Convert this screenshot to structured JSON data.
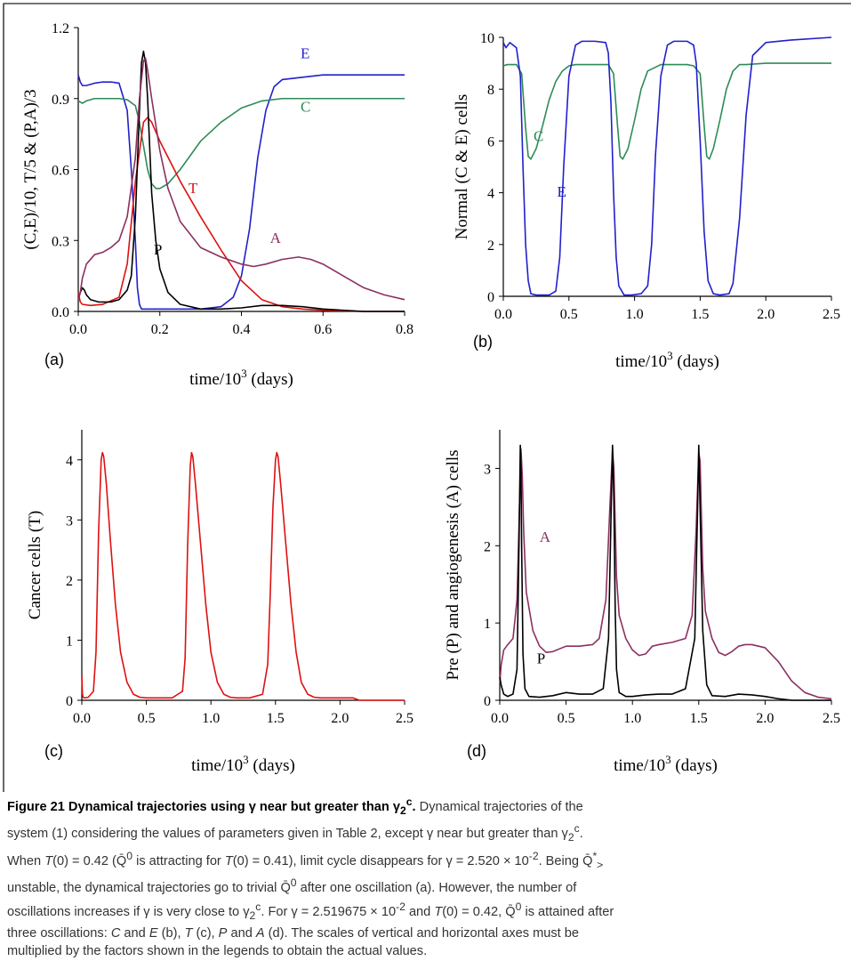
{
  "caption": {
    "title_text": "Figure 21 Dynamical trajectories using γ near but greater than γ",
    "title_sub": "2",
    "title_sup": "c",
    "title_end": ".",
    "line1_a": " Dynamical trajectories of the",
    "line2": "system (1) considering the values of parameters given in Table 2, except γ near but greater than γ",
    "line3_a": "When ",
    "line3_b": "T",
    "line3_c": "(0) = 0.42 (",
    "qbar": "Q̄",
    "sup0": "0",
    "line3_d": " is attracting for ",
    "line3_e": "(0) = 0.41), limit cycle disappears for γ = 2.520 × 10",
    "exp_m2": "-2",
    "line3_f": ". Being ",
    "star_gt": "*",
    "gt": ">",
    "line4_a": "unstable, the dynamical trajectories go to trivial ",
    "line4_b": " after one oscillation (a). However, the number of",
    "line5_a": "oscillations increases if γ is very close to γ",
    "line5_b": ". For γ = 2.519675 × 10",
    "line5_c": " and ",
    "line5_d": "(0) = 0.42, ",
    "line5_e": " is attained after",
    "line6_a": "three oscillations: ",
    "line6_C": "C",
    "line6_and": " and ",
    "line6_E": "E",
    "line6_b": " (b), ",
    "line6_T": "T",
    "line6_c": " (c), ",
    "line6_P": "P",
    "line6_A": "A",
    "line6_d": " (d). The scales of vertical and horizontal axes must be",
    "line7": "multiplied by the factors shown in the legends to obtain the actual values."
  },
  "chart_data": [
    {
      "panel": "(a)",
      "type": "line",
      "xlabel": "time/10",
      "xlabel_sup": "3",
      "xlabel_tail": " (days)",
      "ylabel": "(C,E)/10, T/5 & (P,A)/3",
      "xlim": [
        0,
        0.8
      ],
      "ylim": [
        0,
        1.2
      ],
      "xticks": [
        "0.0",
        "0.2",
        "0.4",
        "0.6",
        "0.8"
      ],
      "yticks": [
        "0.0",
        "0.3",
        "0.6",
        "0.9",
        "1.2"
      ],
      "series": [
        {
          "name": "E",
          "color": "#2020cc",
          "x": [
            0,
            0.005,
            0.01,
            0.02,
            0.04,
            0.06,
            0.08,
            0.1,
            0.12,
            0.13,
            0.14,
            0.145,
            0.15,
            0.155,
            0.16,
            0.17,
            0.18,
            0.2,
            0.25,
            0.3,
            0.35,
            0.38,
            0.4,
            0.42,
            0.44,
            0.46,
            0.48,
            0.5,
            0.55,
            0.6,
            0.7,
            0.8
          ],
          "y": [
            1.0,
            0.97,
            0.955,
            0.955,
            0.965,
            0.97,
            0.97,
            0.965,
            0.85,
            0.6,
            0.3,
            0.1,
            0.03,
            0.01,
            0.01,
            0.01,
            0.01,
            0.01,
            0.01,
            0.01,
            0.02,
            0.06,
            0.15,
            0.35,
            0.65,
            0.85,
            0.95,
            0.98,
            0.99,
            1.0,
            1.0,
            1.0
          ]
        },
        {
          "name": "C",
          "color": "#2e8b57",
          "x": [
            0,
            0.005,
            0.01,
            0.02,
            0.04,
            0.08,
            0.1,
            0.12,
            0.14,
            0.15,
            0.16,
            0.17,
            0.18,
            0.19,
            0.2,
            0.22,
            0.25,
            0.3,
            0.35,
            0.4,
            0.45,
            0.5,
            0.6,
            0.8
          ],
          "y": [
            0.89,
            0.885,
            0.88,
            0.89,
            0.9,
            0.9,
            0.9,
            0.895,
            0.87,
            0.8,
            0.7,
            0.6,
            0.54,
            0.52,
            0.52,
            0.54,
            0.6,
            0.72,
            0.8,
            0.86,
            0.89,
            0.9,
            0.9,
            0.9
          ]
        },
        {
          "name": "T",
          "color": "#dd1111",
          "x": [
            0,
            0.005,
            0.01,
            0.03,
            0.06,
            0.1,
            0.12,
            0.14,
            0.16,
            0.17,
            0.18,
            0.2,
            0.25,
            0.3,
            0.35,
            0.4,
            0.45,
            0.5,
            0.55,
            0.6,
            0.7,
            0.8
          ],
          "y": [
            0.08,
            0.04,
            0.03,
            0.025,
            0.03,
            0.06,
            0.2,
            0.55,
            0.8,
            0.82,
            0.8,
            0.72,
            0.55,
            0.4,
            0.26,
            0.13,
            0.05,
            0.02,
            0.01,
            0.005,
            0.0,
            0.0
          ]
        },
        {
          "name": "P",
          "color": "#000000",
          "x": [
            0,
            0.005,
            0.01,
            0.015,
            0.02,
            0.03,
            0.05,
            0.08,
            0.1,
            0.12,
            0.13,
            0.14,
            0.15,
            0.155,
            0.16,
            0.165,
            0.17,
            0.175,
            0.18,
            0.19,
            0.2,
            0.22,
            0.25,
            0.3,
            0.35,
            0.4,
            0.45,
            0.5,
            0.55,
            0.6,
            0.7,
            0.8
          ],
          "y": [
            0.05,
            0.08,
            0.1,
            0.09,
            0.07,
            0.05,
            0.04,
            0.04,
            0.05,
            0.09,
            0.15,
            0.4,
            0.85,
            1.05,
            1.1,
            1.05,
            0.9,
            0.7,
            0.5,
            0.3,
            0.18,
            0.08,
            0.03,
            0.01,
            0.01,
            0.015,
            0.025,
            0.025,
            0.02,
            0.01,
            0.0,
            0.0
          ]
        },
        {
          "name": "A",
          "color": "#8b3060",
          "x": [
            0,
            0.005,
            0.01,
            0.02,
            0.04,
            0.06,
            0.08,
            0.1,
            0.12,
            0.14,
            0.15,
            0.16,
            0.165,
            0.17,
            0.18,
            0.2,
            0.22,
            0.25,
            0.3,
            0.35,
            0.4,
            0.43,
            0.46,
            0.5,
            0.54,
            0.57,
            0.6,
            0.65,
            0.7,
            0.75,
            0.8
          ],
          "y": [
            0.05,
            0.08,
            0.14,
            0.2,
            0.24,
            0.25,
            0.27,
            0.3,
            0.4,
            0.65,
            0.9,
            1.06,
            1.07,
            1.02,
            0.9,
            0.68,
            0.52,
            0.38,
            0.27,
            0.23,
            0.2,
            0.19,
            0.2,
            0.22,
            0.23,
            0.22,
            0.2,
            0.15,
            0.1,
            0.07,
            0.05
          ]
        }
      ]
    },
    {
      "panel": "(b)",
      "type": "line",
      "xlabel": "time/10",
      "xlabel_sup": "3",
      "xlabel_tail": " (days)",
      "ylabel": "Normal (C & E) cells",
      "xlim": [
        0,
        2.5
      ],
      "ylim": [
        0,
        10
      ],
      "xticks": [
        "0.0",
        "0.5",
        "1.0",
        "1.5",
        "2.0",
        "2.5"
      ],
      "yticks": [
        "0",
        "2",
        "4",
        "6",
        "8",
        "10"
      ],
      "series": [
        {
          "name": "C",
          "color": "#2e8b57",
          "x": [
            0,
            0.03,
            0.1,
            0.14,
            0.17,
            0.19,
            0.21,
            0.25,
            0.3,
            0.35,
            0.4,
            0.45,
            0.5,
            0.55,
            0.6,
            0.7,
            0.8,
            0.84,
            0.87,
            0.89,
            0.91,
            0.95,
            1.0,
            1.05,
            1.1,
            1.2,
            1.3,
            1.4,
            1.45,
            1.5,
            1.53,
            1.55,
            1.57,
            1.6,
            1.65,
            1.7,
            1.75,
            1.8,
            1.85,
            2.0,
            2.5
          ],
          "y": [
            8.9,
            8.95,
            8.95,
            8.6,
            6.5,
            5.4,
            5.3,
            5.7,
            6.6,
            7.6,
            8.3,
            8.7,
            8.9,
            8.95,
            8.95,
            8.95,
            8.95,
            8.6,
            6.6,
            5.4,
            5.3,
            5.7,
            6.8,
            8.0,
            8.7,
            8.95,
            8.95,
            8.95,
            8.9,
            8.6,
            6.6,
            5.4,
            5.3,
            5.7,
            6.8,
            8.0,
            8.7,
            8.95,
            8.95,
            9.0,
            9.0
          ]
        },
        {
          "name": "E",
          "color": "#2020cc",
          "x": [
            0,
            0.02,
            0.05,
            0.1,
            0.13,
            0.15,
            0.17,
            0.19,
            0.21,
            0.25,
            0.3,
            0.35,
            0.4,
            0.43,
            0.46,
            0.5,
            0.55,
            0.6,
            0.7,
            0.78,
            0.8,
            0.82,
            0.84,
            0.86,
            0.88,
            0.92,
            0.98,
            1.05,
            1.1,
            1.13,
            1.16,
            1.2,
            1.25,
            1.3,
            1.4,
            1.45,
            1.47,
            1.5,
            1.53,
            1.56,
            1.6,
            1.65,
            1.72,
            1.75,
            1.8,
            1.85,
            1.9,
            2.0,
            2.2,
            2.5
          ],
          "y": [
            9.8,
            9.6,
            9.8,
            9.6,
            8.5,
            5.0,
            2.0,
            0.6,
            0.1,
            0.05,
            0.05,
            0.05,
            0.2,
            1.5,
            5.0,
            8.5,
            9.7,
            9.85,
            9.85,
            9.8,
            9.4,
            7.5,
            4.0,
            1.5,
            0.4,
            0.05,
            0.05,
            0.1,
            0.4,
            2.0,
            5.5,
            8.5,
            9.7,
            9.85,
            9.85,
            9.7,
            9.0,
            6.0,
            2.5,
            0.6,
            0.1,
            0.05,
            0.1,
            0.5,
            3.0,
            7.0,
            9.3,
            9.8,
            9.9,
            10.0
          ]
        }
      ]
    },
    {
      "panel": "(c)",
      "type": "line",
      "xlabel": "time/10",
      "xlabel_sup": "3",
      "xlabel_tail": " (days)",
      "ylabel": "Cancer cells (T)",
      "xlim": [
        0,
        2.5
      ],
      "ylim": [
        0,
        4.5
      ],
      "xticks": [
        "0.0",
        "0.5",
        "1.0",
        "1.5",
        "2.0",
        "2.5"
      ],
      "yticks": [
        "0",
        "1",
        "2",
        "3",
        "4"
      ],
      "series": [
        {
          "name": "T",
          "color": "#dd1111",
          "x": [
            0,
            0.005,
            0.01,
            0.02,
            0.05,
            0.09,
            0.11,
            0.13,
            0.15,
            0.16,
            0.17,
            0.19,
            0.22,
            0.26,
            0.3,
            0.35,
            0.4,
            0.45,
            0.5,
            0.55,
            0.6,
            0.7,
            0.78,
            0.8,
            0.82,
            0.84,
            0.85,
            0.86,
            0.88,
            0.92,
            0.96,
            1.0,
            1.05,
            1.1,
            1.15,
            1.2,
            1.3,
            1.4,
            1.44,
            1.46,
            1.48,
            1.5,
            1.51,
            1.52,
            1.54,
            1.58,
            1.62,
            1.66,
            1.7,
            1.75,
            1.8,
            1.85,
            2.0,
            2.1,
            2.15,
            2.5
          ],
          "y": [
            0.42,
            0.1,
            0.05,
            0.04,
            0.05,
            0.15,
            0.8,
            2.8,
            4.0,
            4.12,
            4.05,
            3.6,
            2.7,
            1.6,
            0.8,
            0.3,
            0.1,
            0.05,
            0.04,
            0.04,
            0.04,
            0.04,
            0.15,
            0.7,
            2.6,
            3.9,
            4.12,
            4.05,
            3.6,
            2.6,
            1.6,
            0.8,
            0.3,
            0.1,
            0.05,
            0.04,
            0.04,
            0.1,
            0.6,
            1.8,
            3.2,
            4.0,
            4.12,
            4.05,
            3.6,
            2.6,
            1.6,
            0.8,
            0.3,
            0.1,
            0.05,
            0.04,
            0.04,
            0.04,
            0.0,
            0.0
          ]
        }
      ]
    },
    {
      "panel": "(d)",
      "type": "line",
      "xlabel": "time/10",
      "xlabel_sup": "3",
      "xlabel_tail": " (days)",
      "ylabel": "Pre (P) and angiogenesis (A) cells",
      "xlim": [
        0,
        2.5
      ],
      "ylim": [
        0,
        3.5
      ],
      "xticks": [
        "0.0",
        "0.5",
        "1.0",
        "1.5",
        "2.0",
        "2.5"
      ],
      "yticks": [
        "0",
        "1",
        "2",
        "3"
      ],
      "series": [
        {
          "name": "A",
          "color": "#8b3060",
          "x": [
            0,
            0.01,
            0.03,
            0.06,
            0.1,
            0.13,
            0.15,
            0.16,
            0.17,
            0.18,
            0.2,
            0.25,
            0.3,
            0.35,
            0.4,
            0.5,
            0.6,
            0.7,
            0.75,
            0.8,
            0.83,
            0.85,
            0.86,
            0.87,
            0.88,
            0.9,
            0.95,
            1.0,
            1.05,
            1.1,
            1.15,
            1.2,
            1.3,
            1.4,
            1.45,
            1.48,
            1.5,
            1.51,
            1.52,
            1.53,
            1.55,
            1.6,
            1.65,
            1.7,
            1.75,
            1.8,
            1.85,
            1.9,
            2.0,
            2.1,
            2.2,
            2.3,
            2.4,
            2.5
          ],
          "y": [
            0.2,
            0.45,
            0.65,
            0.72,
            0.8,
            1.3,
            2.6,
            3.25,
            2.9,
            2.2,
            1.4,
            0.9,
            0.7,
            0.62,
            0.63,
            0.7,
            0.7,
            0.72,
            0.8,
            1.3,
            2.5,
            3.25,
            3.0,
            2.3,
            1.6,
            1.1,
            0.8,
            0.65,
            0.58,
            0.6,
            0.7,
            0.72,
            0.75,
            0.8,
            1.1,
            2.2,
            3.2,
            3.1,
            2.4,
            1.7,
            1.15,
            0.8,
            0.62,
            0.58,
            0.63,
            0.7,
            0.72,
            0.72,
            0.68,
            0.5,
            0.25,
            0.1,
            0.04,
            0.02
          ]
        },
        {
          "name": "P",
          "color": "#000000",
          "x": [
            0,
            0.01,
            0.03,
            0.06,
            0.1,
            0.13,
            0.145,
            0.155,
            0.16,
            0.165,
            0.175,
            0.19,
            0.22,
            0.3,
            0.4,
            0.5,
            0.6,
            0.7,
            0.78,
            0.82,
            0.84,
            0.85,
            0.86,
            0.87,
            0.88,
            0.9,
            0.95,
            1.0,
            1.1,
            1.2,
            1.3,
            1.4,
            1.47,
            1.49,
            1.5,
            1.51,
            1.53,
            1.56,
            1.6,
            1.7,
            1.8,
            1.9,
            2.0,
            2.1,
            2.2,
            2.5
          ],
          "y": [
            0.3,
            0.2,
            0.08,
            0.05,
            0.08,
            0.4,
            2.0,
            3.3,
            3.0,
            2.0,
            0.6,
            0.15,
            0.05,
            0.04,
            0.06,
            0.1,
            0.08,
            0.08,
            0.15,
            0.8,
            2.5,
            3.3,
            2.6,
            1.2,
            0.4,
            0.1,
            0.05,
            0.05,
            0.07,
            0.08,
            0.08,
            0.15,
            0.8,
            2.4,
            3.3,
            2.5,
            0.9,
            0.2,
            0.06,
            0.05,
            0.08,
            0.07,
            0.05,
            0.02,
            0.0,
            0.0
          ]
        }
      ]
    }
  ]
}
